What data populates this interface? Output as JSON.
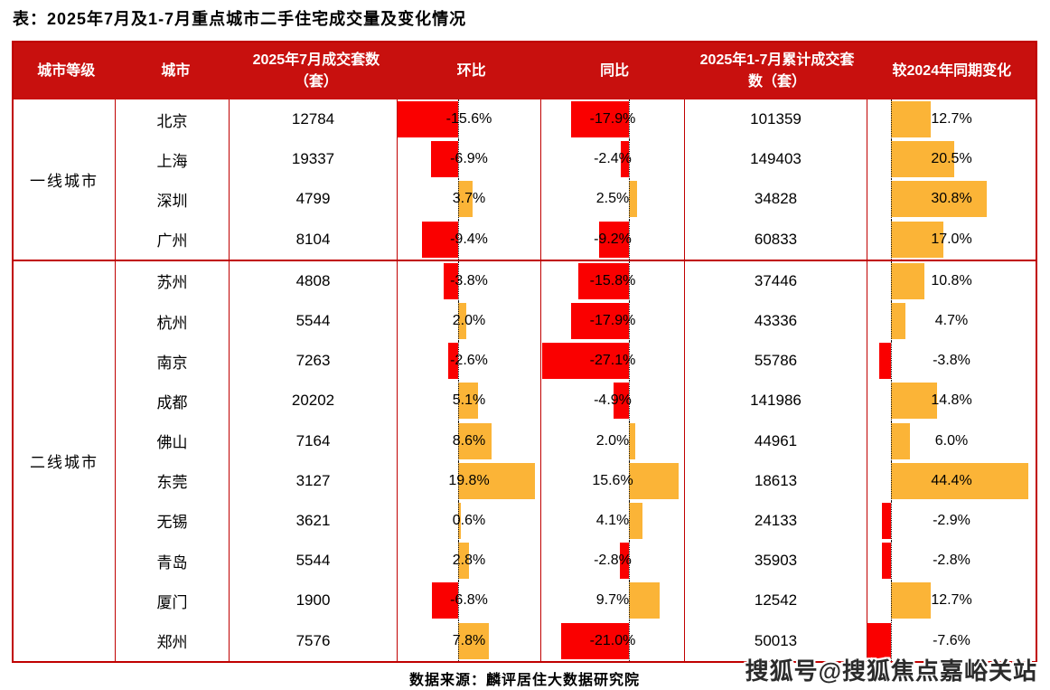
{
  "source": "数据来源：麟评居住大数据研究院",
  "watermark": "搜狐号@搜狐焦点嘉峪关站",
  "colors": {
    "header_bg": "#C8100E",
    "grid_border": "#C00000",
    "negative_bar": "#FA0000",
    "positive_bar": "#FBB437",
    "zero_line": "#111111"
  },
  "chart_data": {
    "type": "table",
    "title": "表：2025年7月及1-7月重点城市二手住宅成交量及变化情况",
    "columns": [
      "城市等级",
      "城市",
      "2025年7月成交套数（套）",
      "环比",
      "同比",
      "2025年1-7月累计成交套数（套）",
      "较2024年同期变化"
    ],
    "bar_columns_note": "环比 / 同比 / 较2024年同期变化 三列为数据条：负值红色向左，正值橙色向右",
    "groups": [
      {
        "tier": "一线城市",
        "rows": [
          {
            "city": "北京",
            "jul": 12784,
            "mom": -15.6,
            "yoy": -17.9,
            "cum": 101359,
            "chg": 12.7
          },
          {
            "city": "上海",
            "jul": 19337,
            "mom": -6.9,
            "yoy": -2.4,
            "cum": 149403,
            "chg": 20.5
          },
          {
            "city": "深圳",
            "jul": 4799,
            "mom": 3.7,
            "yoy": 2.5,
            "cum": 34828,
            "chg": 30.8
          },
          {
            "city": "广州",
            "jul": 8104,
            "mom": -9.4,
            "yoy": -9.2,
            "cum": 60833,
            "chg": 17.0
          }
        ]
      },
      {
        "tier": "二线城市",
        "rows": [
          {
            "city": "苏州",
            "jul": 4808,
            "mom": -3.8,
            "yoy": -15.8,
            "cum": 37446,
            "chg": 10.8
          },
          {
            "city": "杭州",
            "jul": 5544,
            "mom": 2.0,
            "yoy": -17.9,
            "cum": 43336,
            "chg": 4.7
          },
          {
            "city": "南京",
            "jul": 7263,
            "mom": -2.6,
            "yoy": -27.1,
            "cum": 55786,
            "chg": -3.8
          },
          {
            "city": "成都",
            "jul": 20202,
            "mom": 5.1,
            "yoy": -4.9,
            "cum": 141986,
            "chg": 14.8
          },
          {
            "city": "佛山",
            "jul": 7164,
            "mom": 8.6,
            "yoy": 2.0,
            "cum": 44961,
            "chg": 6.0
          },
          {
            "city": "东莞",
            "jul": 3127,
            "mom": 19.8,
            "yoy": 15.6,
            "cum": 18613,
            "chg": 44.4
          },
          {
            "city": "无锡",
            "jul": 3621,
            "mom": 0.6,
            "yoy": 4.1,
            "cum": 24133,
            "chg": -2.9
          },
          {
            "city": "青岛",
            "jul": 5544,
            "mom": 2.8,
            "yoy": -2.8,
            "cum": 35903,
            "chg": -2.8
          },
          {
            "city": "厦门",
            "jul": 1900,
            "mom": -6.8,
            "yoy": 9.7,
            "cum": 12542,
            "chg": 12.7
          },
          {
            "city": "郑州",
            "jul": 7576,
            "mom": 7.8,
            "yoy": -21.0,
            "cum": 50013,
            "chg": -7.6
          }
        ]
      }
    ]
  }
}
